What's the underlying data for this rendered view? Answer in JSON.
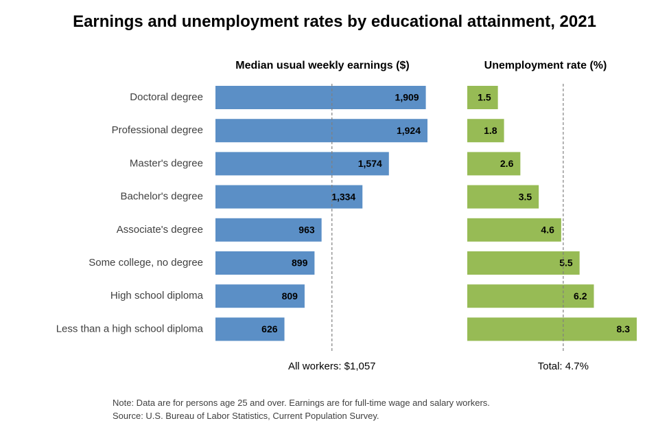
{
  "chart_data": {
    "type": "bar",
    "orientation": "horizontal",
    "title": "Earnings and unemployment rates by educational attainment, 2021",
    "categories": [
      "Doctoral degree",
      "Professional degree",
      "Master's degree",
      "Bachelor's degree",
      "Associate's degree",
      "Some college, no degree",
      "High school diploma",
      "Less than a high school diploma"
    ],
    "panels": [
      {
        "title": "Median usual weekly earnings ($)",
        "color": "#5b8fc6",
        "values": [
          1909,
          1924,
          1574,
          1334,
          963,
          899,
          809,
          626
        ],
        "value_labels": [
          "1,909",
          "1,924",
          "1,574",
          "1,334",
          "963",
          "899",
          "809",
          "626"
        ],
        "xlim": [
          0,
          1924
        ],
        "reference": {
          "value": 1057,
          "label": "All workers: $1,057",
          "style": "dashed"
        }
      },
      {
        "title": "Unemployment rate (%)",
        "color": "#97bb55",
        "values": [
          1.5,
          1.8,
          2.6,
          3.5,
          4.6,
          5.5,
          6.2,
          8.3
        ],
        "value_labels": [
          "1.5",
          "1.8",
          "2.6",
          "3.5",
          "4.6",
          "5.5",
          "6.2",
          "8.3"
        ],
        "xlim": [
          0,
          8.3
        ],
        "reference": {
          "value": 4.7,
          "label": "Total: 4.7%",
          "style": "dashed"
        }
      }
    ],
    "grid": false,
    "legend": "none"
  },
  "notes": {
    "line1": "Note: Data are for persons age 25 and over. Earnings are for full-time wage and salary workers.",
    "line2": "Source: U.S. Bureau of Labor Statistics, Current Population Survey."
  }
}
